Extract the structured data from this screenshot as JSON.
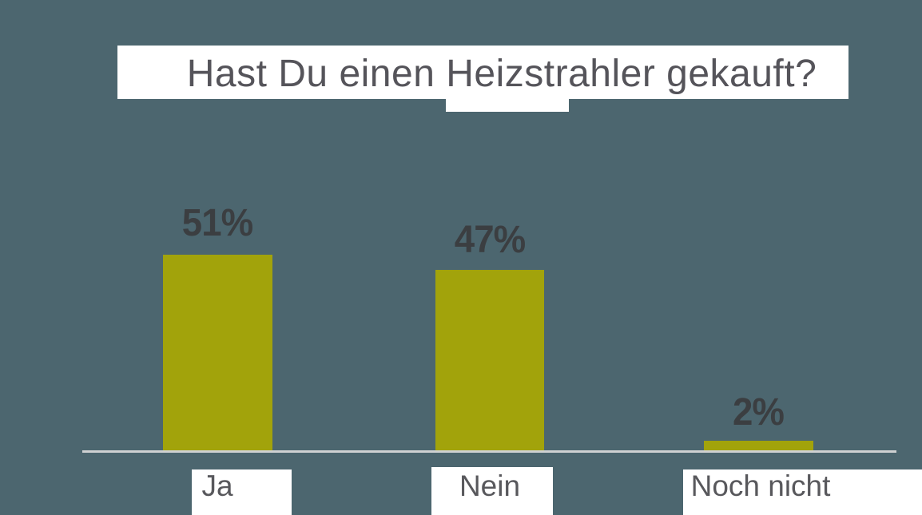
{
  "chart_data": {
    "type": "bar",
    "title": "Hast Du einen Heizstrahler gekauft?",
    "categories": [
      "Ja",
      "Nein",
      "Noch nicht"
    ],
    "values": [
      51,
      47,
      2
    ],
    "unit": "%",
    "ylim": [
      0,
      100
    ],
    "grid": false,
    "legend": false,
    "bars": [
      {
        "category": "Ja",
        "value": 51,
        "value_label": "51%"
      },
      {
        "category": "Nein",
        "value": 47,
        "value_label": "47%"
      },
      {
        "category": "Noch nicht",
        "value": 2,
        "value_label": "2%"
      }
    ],
    "colors": {
      "background": "#4C666F",
      "bar_fill": "#A2A30B",
      "title_plate": "#FFFFFF",
      "title_text": "#55545A",
      "value_label_text": "#3B3E41",
      "axis_line": "#CFD1D2",
      "category_label_text": "#58585C",
      "category_plate": "#FFFFFF"
    }
  }
}
